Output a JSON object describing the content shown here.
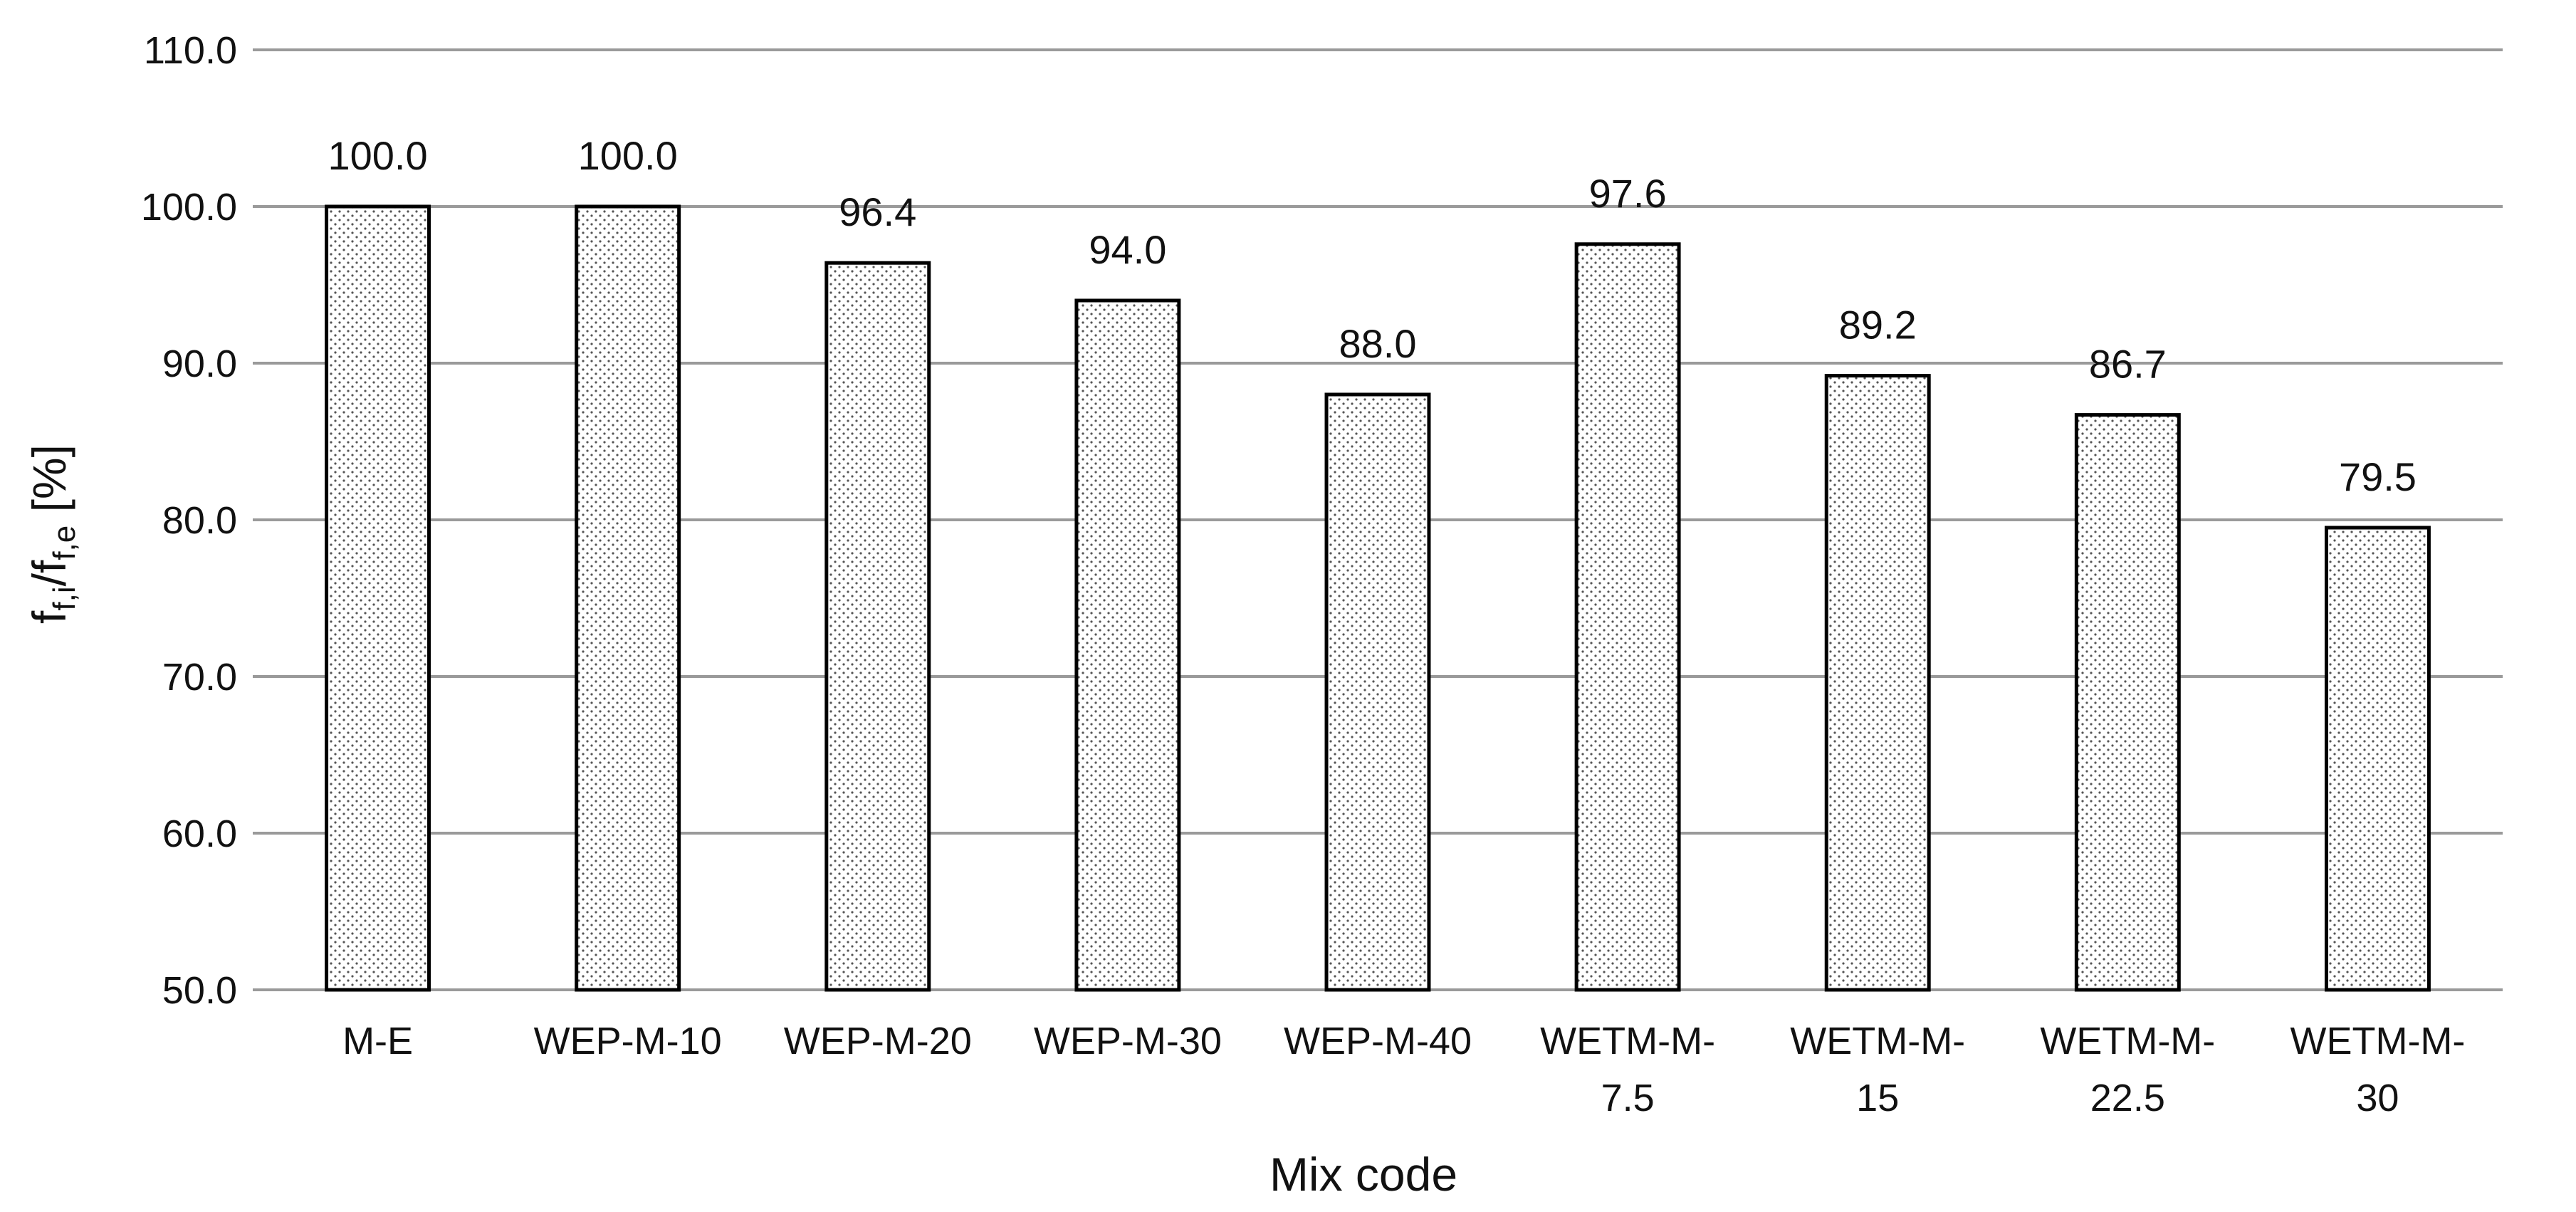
{
  "chart_data": {
    "type": "bar",
    "categories": [
      [
        "M-E"
      ],
      [
        "WEP-M-10"
      ],
      [
        "WEP-M-20"
      ],
      [
        "WEP-M-30"
      ],
      [
        "WEP-M-40"
      ],
      [
        "WETM-M-",
        "7.5"
      ],
      [
        "WETM-M-",
        "15"
      ],
      [
        "WETM-M-",
        "22.5"
      ],
      [
        "WETM-M-",
        "30"
      ]
    ],
    "values": [
      100.0,
      100.0,
      96.4,
      94.0,
      88.0,
      97.6,
      89.2,
      86.7,
      79.5
    ],
    "data_labels": [
      "100.0",
      "100.0",
      "96.4",
      "94.0",
      "88.0",
      "97.6",
      "89.2",
      "86.7",
      "79.5"
    ],
    "title": "",
    "xlabel": "Mix code",
    "ylabel": {
      "parts": [
        {
          "text": "f",
          "sub": false
        },
        {
          "text": "f,i",
          "sub": true
        },
        {
          "text": "/f",
          "sub": false
        },
        {
          "text": "f,e",
          "sub": true
        },
        {
          "text": " [%]",
          "sub": false
        }
      ]
    },
    "ylim": [
      50.0,
      110.0
    ],
    "yticks": [
      "50.0",
      "60.0",
      "70.0",
      "80.0",
      "90.0",
      "100.0",
      "110.0"
    ],
    "grid": true,
    "legend": "none",
    "bar_fill": "dotted-pattern",
    "colors": {
      "bar_edge": "#000000",
      "grid": "#9a9a9a",
      "text": "#111111"
    }
  }
}
